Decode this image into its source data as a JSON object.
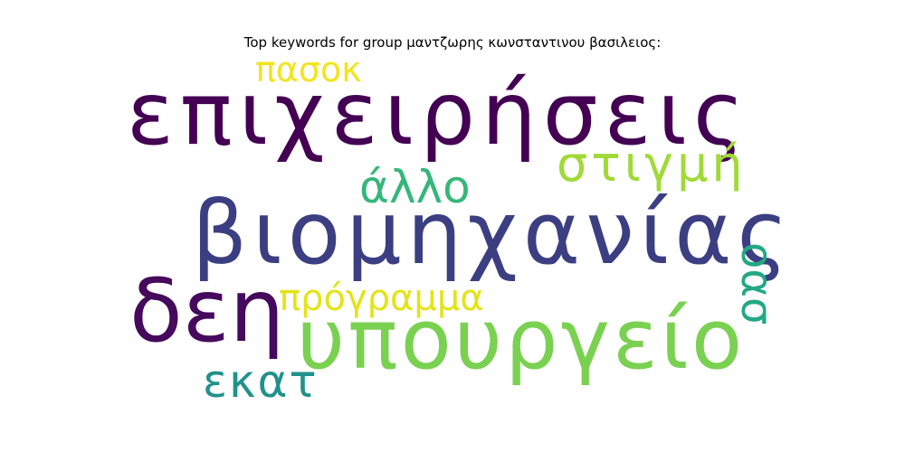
{
  "title": "Top keywords for group μαντζωρης κωνσταντινου βασιλειος:",
  "words": {
    "epixeiriseis": {
      "text": "επιχειρήσεις",
      "color": "#440154"
    },
    "viomixanias": {
      "text": "βιομηχανίας",
      "color": "#3b3f82"
    },
    "den": {
      "text": "δεη",
      "color": "#450a5c"
    },
    "ypourgeio": {
      "text": "υπουργείο",
      "color": "#7ad151"
    },
    "pasok": {
      "text": "πασοκ",
      "color": "#f1e51d"
    },
    "stigmi": {
      "text": "στιγμή",
      "color": "#a0da39"
    },
    "allo": {
      "text": "άλλο",
      "color": "#35b779"
    },
    "programma": {
      "text": "πρόγραμμα",
      "color": "#e3e418"
    },
    "ekat": {
      "text": "εκατ",
      "color": "#21918c"
    },
    "oas": {
      "text": "οασ",
      "color": "#22a884"
    }
  }
}
